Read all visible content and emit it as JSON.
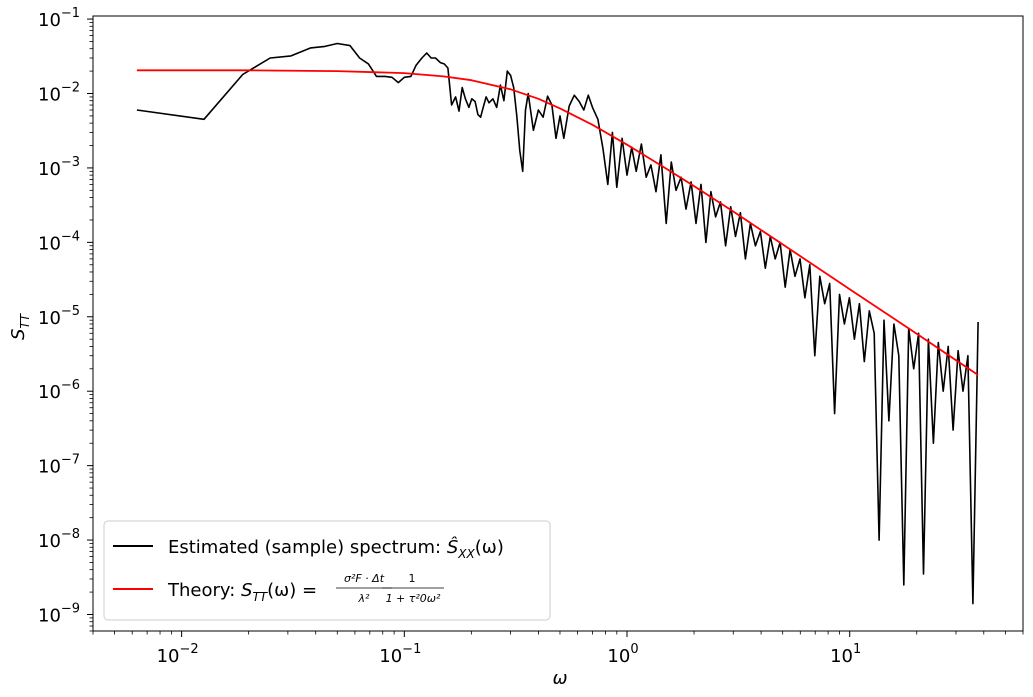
{
  "chart_data": {
    "type": "line",
    "xlabel": "ω",
    "ylabel": "S",
    "ylabel_sub": "TT",
    "xscale": "log",
    "yscale": "log",
    "xlim": [
      0.004,
      60
    ],
    "ylim": [
      6e-10,
      0.11
    ],
    "grid": false,
    "legend_position": "lower-left",
    "x_ticks": [
      {
        "value": 0.01,
        "label": "10",
        "exp": "−2"
      },
      {
        "value": 0.1,
        "label": "10",
        "exp": "−1"
      },
      {
        "value": 1,
        "label": "10",
        "exp": "0"
      },
      {
        "value": 10,
        "label": "10",
        "exp": "1"
      }
    ],
    "y_ticks": [
      {
        "value": 1e-09,
        "label": "10",
        "exp": "−9"
      },
      {
        "value": 1e-08,
        "label": "10",
        "exp": "−8"
      },
      {
        "value": 1e-07,
        "label": "10",
        "exp": "−7"
      },
      {
        "value": 1e-06,
        "label": "10",
        "exp": "−6"
      },
      {
        "value": 1e-05,
        "label": "10",
        "exp": "−5"
      },
      {
        "value": 0.0001,
        "label": "10",
        "exp": "−4"
      },
      {
        "value": 0.001,
        "label": "10",
        "exp": "−3"
      },
      {
        "value": 0.01,
        "label": "10",
        "exp": "−2"
      },
      {
        "value": 0.1,
        "label": "10",
        "exp": "−1"
      }
    ],
    "series": [
      {
        "name": "Estimated (sample) spectrum: Ŝ_XX(ω)",
        "legend_text": "Estimated (sample) spectrum: ",
        "legend_math": "Ŝ",
        "legend_math_sub": "XX",
        "legend_math_tail": "(ω)",
        "color": "#000000",
        "x": [
          0.0063,
          0.0126,
          0.0188,
          0.025,
          0.031,
          0.038,
          0.044,
          0.05,
          0.057,
          0.063,
          0.069,
          0.075,
          0.082,
          0.088,
          0.094,
          0.1,
          0.107,
          0.113,
          0.12,
          0.126,
          0.132,
          0.138,
          0.145,
          0.151,
          0.157,
          0.163,
          0.17,
          0.176,
          0.182,
          0.188,
          0.195,
          0.201,
          0.208,
          0.214,
          0.22,
          0.226,
          0.233,
          0.24,
          0.25,
          0.26,
          0.27,
          0.28,
          0.29,
          0.3,
          0.31,
          0.32,
          0.33,
          0.34,
          0.35,
          0.36,
          0.38,
          0.4,
          0.42,
          0.44,
          0.46,
          0.48,
          0.5,
          0.52,
          0.55,
          0.58,
          0.61,
          0.64,
          0.67,
          0.7,
          0.74,
          0.78,
          0.82,
          0.86,
          0.9,
          0.95,
          1.0,
          1.05,
          1.1,
          1.16,
          1.22,
          1.28,
          1.35,
          1.42,
          1.5,
          1.58,
          1.66,
          1.75,
          1.84,
          1.94,
          2.04,
          2.15,
          2.26,
          2.38,
          2.5,
          2.63,
          2.77,
          2.92,
          3.07,
          3.23,
          3.4,
          3.58,
          3.77,
          3.97,
          4.18,
          4.4,
          4.63,
          4.87,
          5.13,
          5.4,
          5.68,
          5.98,
          6.29,
          6.62,
          6.97,
          7.34,
          7.72,
          8.13,
          8.55,
          9.0,
          9.47,
          9.97,
          10.5,
          11.05,
          11.63,
          12.24,
          12.88,
          13.55,
          14.26,
          15.0,
          15.79,
          16.62,
          17.49,
          18.4,
          19.37,
          20.38,
          21.45,
          22.57,
          23.75,
          25.0,
          26.3,
          27.68,
          29.13,
          30.66,
          32.26,
          33.95,
          35.73,
          37.7
        ],
        "y": [
          0.006,
          0.0045,
          0.018,
          0.03,
          0.032,
          0.041,
          0.043,
          0.047,
          0.044,
          0.03,
          0.025,
          0.017,
          0.017,
          0.0165,
          0.014,
          0.0165,
          0.017,
          0.024,
          0.03,
          0.035,
          0.03,
          0.03,
          0.026,
          0.025,
          0.022,
          0.007,
          0.009,
          0.0058,
          0.012,
          0.0085,
          0.0065,
          0.0085,
          0.0078,
          0.0052,
          0.0048,
          0.0065,
          0.009,
          0.0075,
          0.0085,
          0.0065,
          0.013,
          0.008,
          0.02,
          0.0175,
          0.012,
          0.005,
          0.0017,
          0.0009,
          0.006,
          0.01,
          0.0032,
          0.006,
          0.0048,
          0.0092,
          0.007,
          0.0025,
          0.005,
          0.0025,
          0.0068,
          0.0095,
          0.0078,
          0.006,
          0.0095,
          0.0065,
          0.0045,
          0.0018,
          0.0006,
          0.003,
          0.00055,
          0.0025,
          0.0008,
          0.0019,
          0.0009,
          0.0021,
          0.00075,
          0.0011,
          0.00048,
          0.0015,
          0.00018,
          0.0012,
          0.0005,
          0.00075,
          0.00028,
          0.00065,
          0.00018,
          0.0006,
          0.0001,
          0.00048,
          0.00022,
          0.00035,
          9e-05,
          0.0003,
          0.00012,
          0.00025,
          6e-05,
          0.00018,
          9e-05,
          0.00014,
          4.5e-05,
          0.00012,
          6e-05,
          0.0001,
          2.5e-05,
          8e-05,
          3.5e-05,
          6e-05,
          1.8e-05,
          5e-05,
          3e-06,
          3.5e-05,
          1.5e-05,
          2.8e-05,
          5e-07,
          2e-05,
          8e-06,
          1.8e-05,
          5e-06,
          1.5e-05,
          2.5e-06,
          1.2e-05,
          6e-06,
          1e-08,
          9e-06,
          4e-07,
          8e-06,
          3e-06,
          2.5e-09,
          7e-06,
          2e-06,
          6e-06,
          3.5e-09,
          5e-06,
          2e-07,
          4.5e-06,
          1e-06,
          4e-06,
          3e-07,
          3.5e-06,
          1e-06,
          3e-06,
          1.4e-09,
          8.5e-06
        ]
      },
      {
        "name": "Theory: S_TT(ω) = (σ_F²·Δt / λ²) · 1/(1+τ₀²ω²)",
        "legend_text": "Theory: ",
        "legend_math": "S",
        "legend_math_sub": "TT",
        "legend_math_tail": "(ω) =",
        "frac1_num": "σ²F · Δt",
        "frac1_den": "λ²",
        "frac2_num": "1",
        "frac2_den": "1 + τ²0ω²",
        "color": "#ff0000",
        "x": [
          0.0063,
          0.01,
          0.02,
          0.05,
          0.1,
          0.15,
          0.2,
          0.3,
          0.4,
          0.5,
          0.7,
          1.0,
          1.5,
          2.0,
          3.0,
          5.0,
          7.0,
          10.0,
          15.0,
          20.0,
          30.0,
          37.7
        ],
        "y": [
          0.0205,
          0.0205,
          0.0205,
          0.02,
          0.0188,
          0.017,
          0.0151,
          0.0114,
          0.0085,
          0.0063,
          0.0038,
          0.00205,
          0.00098,
          0.00057,
          0.00026,
          9.4e-05,
          4.8e-05,
          2.35e-05,
          1.05e-05,
          5.9e-06,
          2.6e-06,
          1.65e-06
        ]
      }
    ]
  }
}
